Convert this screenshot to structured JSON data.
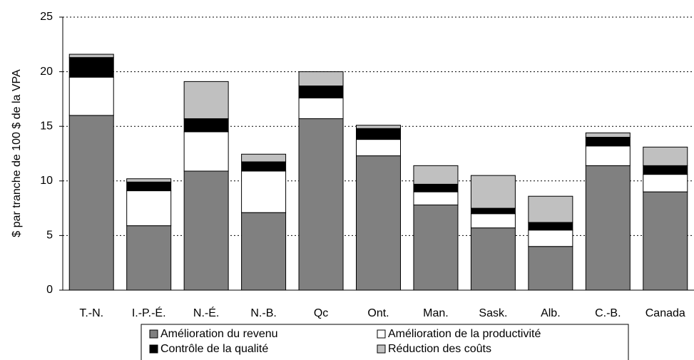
{
  "chart_data": {
    "type": "stacked_bar",
    "y_label": "$ par tranche de 100 $ de la VPA",
    "categories": [
      "T.-N.",
      "I.-P.-É.",
      "N.-É.",
      "N.-B.",
      "Qc",
      "Ont.",
      "Man.",
      "Sask.",
      "Alb.",
      "C.-B.",
      "Canada"
    ],
    "series": [
      {
        "name": "Amélioration du revenu",
        "color": "#808080",
        "values": [
          16.0,
          5.9,
          10.9,
          7.1,
          15.7,
          12.3,
          7.8,
          5.7,
          4.0,
          11.4,
          9.0
        ]
      },
      {
        "name": "Amélioration de la productivité",
        "color": "#ffffff",
        "values": [
          3.5,
          3.2,
          3.6,
          3.8,
          1.9,
          1.5,
          1.2,
          1.3,
          1.5,
          1.8,
          1.6
        ]
      },
      {
        "name": "Contrôle de la qualité",
        "color": "#000000",
        "values": [
          1.8,
          0.8,
          1.2,
          0.85,
          1.1,
          1.0,
          0.7,
          0.5,
          0.7,
          0.8,
          0.8
        ]
      },
      {
        "name": "Réduction des coûts",
        "color": "#c0c0c0",
        "values": [
          0.3,
          0.3,
          3.4,
          0.7,
          1.3,
          0.3,
          1.7,
          3.0,
          2.4,
          0.4,
          1.7
        ]
      }
    ],
    "ylim": [
      0,
      25
    ],
    "yticks": [
      0,
      5,
      10,
      15,
      20,
      25
    ],
    "grid": true
  }
}
